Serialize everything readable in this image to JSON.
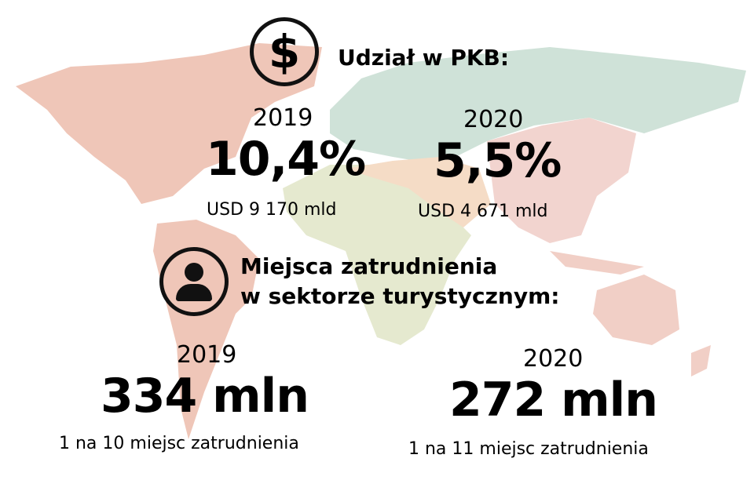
{
  "colors": {
    "americas": "#efc6b8",
    "europe_asia_north": "#cfe2d8",
    "africa": "#e5e9cf",
    "middle_east": "#f5dcc6",
    "asia": "#f2d4cf",
    "oceania": "#f1cfc6"
  },
  "gdp": {
    "icon": "dollar-icon",
    "heading": "Udział w PKB:",
    "y2019": {
      "year": "2019",
      "value": "10,4%",
      "amount": "USD 9 170 mld"
    },
    "y2020": {
      "year": "2020",
      "value": "5,5%",
      "amount": "USD 4 671 mld"
    }
  },
  "jobs": {
    "icon": "person-icon",
    "heading_line1": "Miejsca zatrudnienia",
    "heading_line2": "w sektorze turystycznym:",
    "y2019": {
      "year": "2019",
      "value": "334 mln",
      "note": "1 na 10 miejsc zatrudnienia"
    },
    "y2020": {
      "year": "2020",
      "value": "272 mln",
      "note": "1 na 11 miejsc zatrudnienia"
    }
  }
}
